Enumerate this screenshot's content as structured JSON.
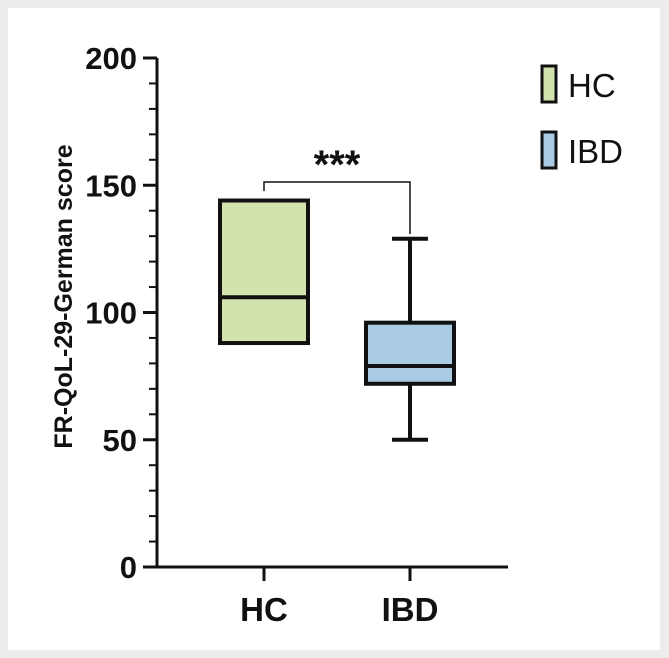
{
  "chart_data": {
    "type": "box",
    "ylabel": "FR-QoL-29-German score",
    "ylim": [
      0,
      200
    ],
    "yticks": [
      "0",
      "50",
      "100",
      "150",
      "200"
    ],
    "categories": [
      "HC",
      "IBD"
    ],
    "series": [
      {
        "name": "HC",
        "color": "#d3e3ae",
        "min": 88,
        "q1": 88,
        "median": 106,
        "q3": 144,
        "max": 144
      },
      {
        "name": "IBD",
        "color": "#a9cbe3",
        "min": 50,
        "q1": 72,
        "median": 79,
        "q3": 96,
        "max": 129
      }
    ],
    "significance": {
      "from": "HC",
      "to": "IBD",
      "label": "***"
    },
    "legend": {
      "placement": "top-right",
      "items": [
        "HC",
        "IBD"
      ]
    }
  }
}
